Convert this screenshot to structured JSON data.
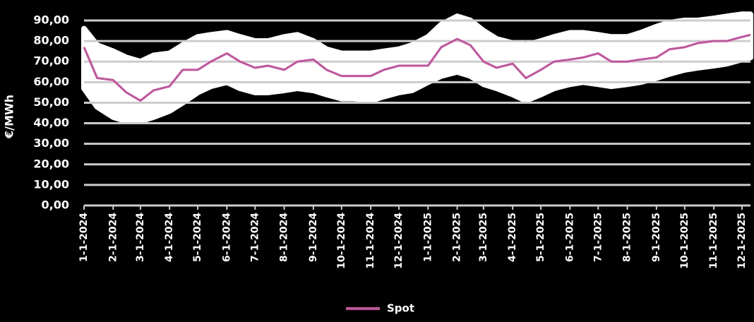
{
  "chart_data": {
    "type": "line",
    "y_label": "€/MWh",
    "x": [
      "2024-01-01",
      "2024-01-15",
      "2024-02-01",
      "2024-02-15",
      "2024-03-01",
      "2024-03-15",
      "2024-04-01",
      "2024-04-15",
      "2024-05-01",
      "2024-05-15",
      "2024-06-01",
      "2024-06-15",
      "2024-07-01",
      "2024-07-15",
      "2024-08-01",
      "2024-08-15",
      "2024-09-01",
      "2024-09-15",
      "2024-10-01",
      "2024-10-15",
      "2024-11-01",
      "2024-11-15",
      "2024-12-01",
      "2024-12-15",
      "2025-01-01",
      "2025-01-15",
      "2025-02-01",
      "2025-02-15",
      "2025-03-01",
      "2025-03-15",
      "2025-04-01",
      "2025-04-15",
      "2025-05-01",
      "2025-05-15",
      "2025-06-01",
      "2025-06-15",
      "2025-07-01",
      "2025-07-15",
      "2025-08-01",
      "2025-08-15",
      "2025-09-01",
      "2025-09-15",
      "2025-10-01",
      "2025-10-15",
      "2025-11-01",
      "2025-11-15",
      "2025-12-01",
      "2025-12-10"
    ],
    "series": [
      {
        "name": "Spot",
        "color": "#c94f9e",
        "values": [
          77,
          62,
          61,
          55,
          51,
          56,
          58,
          66,
          66,
          70,
          74,
          70,
          67,
          68,
          66,
          70,
          71,
          66,
          63,
          63,
          63,
          66,
          68,
          68,
          68,
          77,
          81,
          78,
          70,
          67,
          69,
          62,
          66,
          70,
          71,
          72,
          74,
          70,
          70,
          71,
          72,
          76,
          77,
          79,
          80,
          80,
          82,
          83
        ]
      }
    ],
    "band": {
      "color": "#ffffff",
      "upper": [
        86,
        78,
        75,
        72,
        70,
        73,
        74,
        78,
        82,
        83,
        84,
        82,
        80,
        80,
        82,
        83,
        80,
        76,
        74,
        74,
        74,
        75,
        76,
        78,
        82,
        88,
        92,
        90,
        85,
        81,
        79,
        78,
        80,
        82,
        84,
        84,
        83,
        82,
        82,
        84,
        87,
        89,
        90,
        90,
        91,
        92,
        93,
        93
      ],
      "lower": [
        57,
        48,
        43,
        41,
        41,
        43,
        46,
        50,
        55,
        58,
        60,
        57,
        55,
        55,
        56,
        57,
        56,
        54,
        52,
        52,
        51,
        53,
        55,
        56,
        60,
        63,
        65,
        63,
        59,
        57,
        54,
        51,
        54,
        57,
        59,
        60,
        59,
        58,
        59,
        60,
        62,
        64,
        66,
        67,
        68,
        69,
        71,
        72
      ]
    },
    "xlim": [
      "2024-01-01",
      "2025-12-10"
    ],
    "xticks": [
      {
        "value": "2024-01-01",
        "label": "1-1-2024"
      },
      {
        "value": "2024-02-01",
        "label": "2-1-2024"
      },
      {
        "value": "2024-03-01",
        "label": "3-1-2024"
      },
      {
        "value": "2024-04-01",
        "label": "4-1-2024"
      },
      {
        "value": "2024-05-01",
        "label": "5-1-2024"
      },
      {
        "value": "2024-06-01",
        "label": "6-1-2024"
      },
      {
        "value": "2024-07-01",
        "label": "7-1-2024"
      },
      {
        "value": "2024-08-01",
        "label": "8-1-2024"
      },
      {
        "value": "2024-09-01",
        "label": "9-1-2024"
      },
      {
        "value": "2024-10-01",
        "label": "10-1-2024"
      },
      {
        "value": "2024-11-01",
        "label": "11-1-2024"
      },
      {
        "value": "2024-12-01",
        "label": "12-1-2024"
      },
      {
        "value": "2025-01-01",
        "label": "1-1-2025"
      },
      {
        "value": "2025-02-01",
        "label": "2-1-2025"
      },
      {
        "value": "2025-03-01",
        "label": "3-1-2025"
      },
      {
        "value": "2025-04-01",
        "label": "4-1-2025"
      },
      {
        "value": "2025-05-01",
        "label": "5-1-2025"
      },
      {
        "value": "2025-06-01",
        "label": "6-1-2025"
      },
      {
        "value": "2025-07-01",
        "label": "7-1-2025"
      },
      {
        "value": "2025-08-01",
        "label": "8-1-2025"
      },
      {
        "value": "2025-09-01",
        "label": "9-1-2025"
      },
      {
        "value": "2025-10-01",
        "label": "10-1-2025"
      },
      {
        "value": "2025-11-01",
        "label": "11-1-2025"
      },
      {
        "value": "2025-12-01",
        "label": "12-1-2025"
      }
    ],
    "ylim": [
      0,
      90
    ],
    "yticks": [
      {
        "value": 0,
        "label": "0,00"
      },
      {
        "value": 10,
        "label": "10,00"
      },
      {
        "value": 20,
        "label": "20,00"
      },
      {
        "value": 30,
        "label": "30,00"
      },
      {
        "value": 40,
        "label": "40,00"
      },
      {
        "value": 50,
        "label": "50,00"
      },
      {
        "value": 60,
        "label": "60,00"
      },
      {
        "value": 70,
        "label": "70,00"
      },
      {
        "value": 80,
        "label": "80,00"
      },
      {
        "value": 90,
        "label": "90,00"
      }
    ],
    "grid": true,
    "legend": "bottom"
  }
}
